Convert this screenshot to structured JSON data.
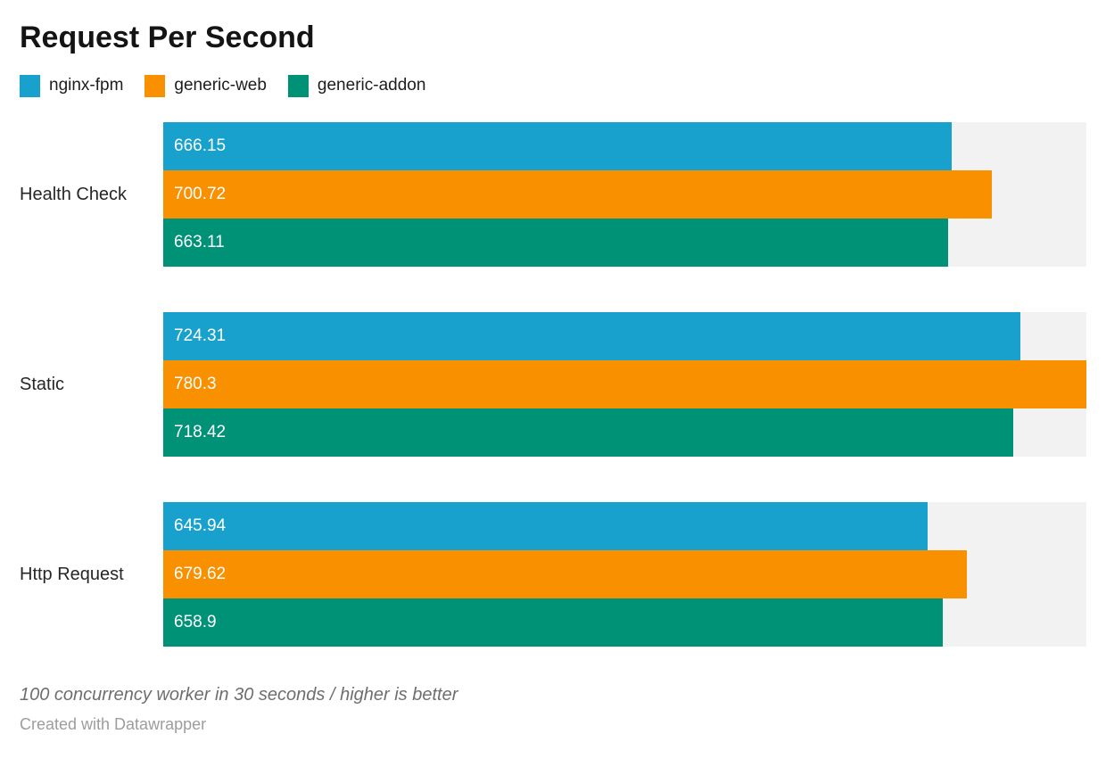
{
  "title": "Request Per Second",
  "legend": {
    "items": [
      {
        "label": "nginx-fpm",
        "color": "#18a1cd"
      },
      {
        "label": "generic-web",
        "color": "#f89000"
      },
      {
        "label": "generic-addon",
        "color": "#009277"
      }
    ]
  },
  "chart_data": {
    "type": "bar",
    "orientation": "horizontal",
    "title": "Request Per Second",
    "categories": [
      "Health Check",
      "Static",
      "Http Request"
    ],
    "series": [
      {
        "name": "nginx-fpm",
        "color": "#18a1cd",
        "values": [
          666.15,
          724.31,
          645.94
        ],
        "labels": [
          "666.15",
          "724.31",
          "645.94"
        ]
      },
      {
        "name": "generic-web",
        "color": "#f89000",
        "values": [
          700.72,
          780.3,
          679.62
        ],
        "labels": [
          "700.72",
          "780.3",
          "679.62"
        ]
      },
      {
        "name": "generic-addon",
        "color": "#009277",
        "values": [
          663.11,
          718.42,
          658.9
        ],
        "labels": [
          "663.11",
          "718.42",
          "658.9"
        ]
      }
    ],
    "axis_min": 0,
    "axis_max": 780.3,
    "value_labels_inside": true,
    "track_color": "#f2f2f2",
    "grid": false,
    "legend_position": "top"
  },
  "footer": {
    "note": "100 concurrency worker in 30 seconds / higher is better",
    "attribution": "Created with Datawrapper"
  }
}
